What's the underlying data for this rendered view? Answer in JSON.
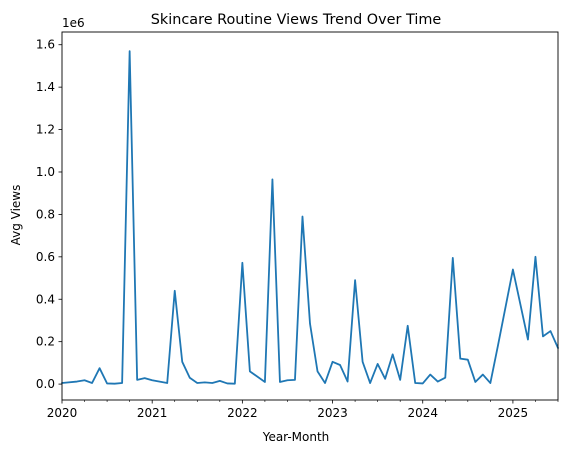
{
  "chart_data": {
    "type": "line",
    "title": "Skincare Routine Views Trend Over Time",
    "xlabel": "Year-Month",
    "ylabel": "Avg Views",
    "y_offset_label": "1e6",
    "y_scale": 1000000,
    "y_ticks": [
      0,
      200000,
      400000,
      600000,
      800000,
      1000000,
      1200000,
      1400000,
      1600000
    ],
    "y_tick_labels": [
      "0.0",
      "0.2",
      "0.4",
      "0.6",
      "0.8",
      "1.0",
      "1.2",
      "1.4",
      "1.6"
    ],
    "ylim": [
      -75000,
      1660000
    ],
    "xlim": [
      "2020-01",
      "2025-07"
    ],
    "x_ticks": [
      "2020-01",
      "2021-01",
      "2022-01",
      "2023-01",
      "2024-01",
      "2025-01"
    ],
    "x_tick_labels": [
      "2020",
      "2021",
      "2022",
      "2023",
      "2024",
      "2025"
    ],
    "line_color": "#1f77b4",
    "grid": false,
    "series": [
      {
        "x": [
          "2020-01",
          "2020-03",
          "2020-04",
          "2020-05",
          "2020-06",
          "2020-07",
          "2020-08",
          "2020-09",
          "2020-10",
          "2020-11",
          "2020-12",
          "2021-01",
          "2021-03",
          "2021-04",
          "2021-05",
          "2021-06",
          "2021-07",
          "2021-08",
          "2021-09",
          "2021-10",
          "2021-11",
          "2021-12",
          "2022-01",
          "2022-02",
          "2022-04",
          "2022-05",
          "2022-06",
          "2022-07",
          "2022-08",
          "2022-09",
          "2022-10",
          "2022-11",
          "2022-12",
          "2023-01",
          "2023-02",
          "2023-03",
          "2023-04",
          "2023-05",
          "2023-06",
          "2023-07",
          "2023-08",
          "2023-09",
          "2023-10",
          "2023-11",
          "2023-12",
          "2024-01",
          "2024-02",
          "2024-03",
          "2024-04",
          "2024-05",
          "2024-06",
          "2024-07",
          "2024-08",
          "2024-09",
          "2024-10",
          "2024-11",
          "2025-01",
          "2025-03",
          "2025-04",
          "2025-05",
          "2025-06",
          "2025-07"
        ],
        "values": [
          5000,
          12000,
          18000,
          5000,
          75000,
          3000,
          2000,
          5000,
          1570000,
          20000,
          28000,
          18000,
          5000,
          440000,
          105000,
          30000,
          5000,
          8000,
          5000,
          15000,
          3000,
          2000,
          572000,
          60000,
          10000,
          965000,
          10000,
          18000,
          20000,
          790000,
          285000,
          60000,
          5000,
          105000,
          90000,
          12000,
          490000,
          105000,
          5000,
          95000,
          25000,
          140000,
          20000,
          275000,
          5000,
          3000,
          45000,
          12000,
          30000,
          595000,
          120000,
          115000,
          10000,
          45000,
          5000,
          180000,
          540000,
          210000,
          600000,
          225000,
          250000,
          170000
        ]
      }
    ]
  }
}
